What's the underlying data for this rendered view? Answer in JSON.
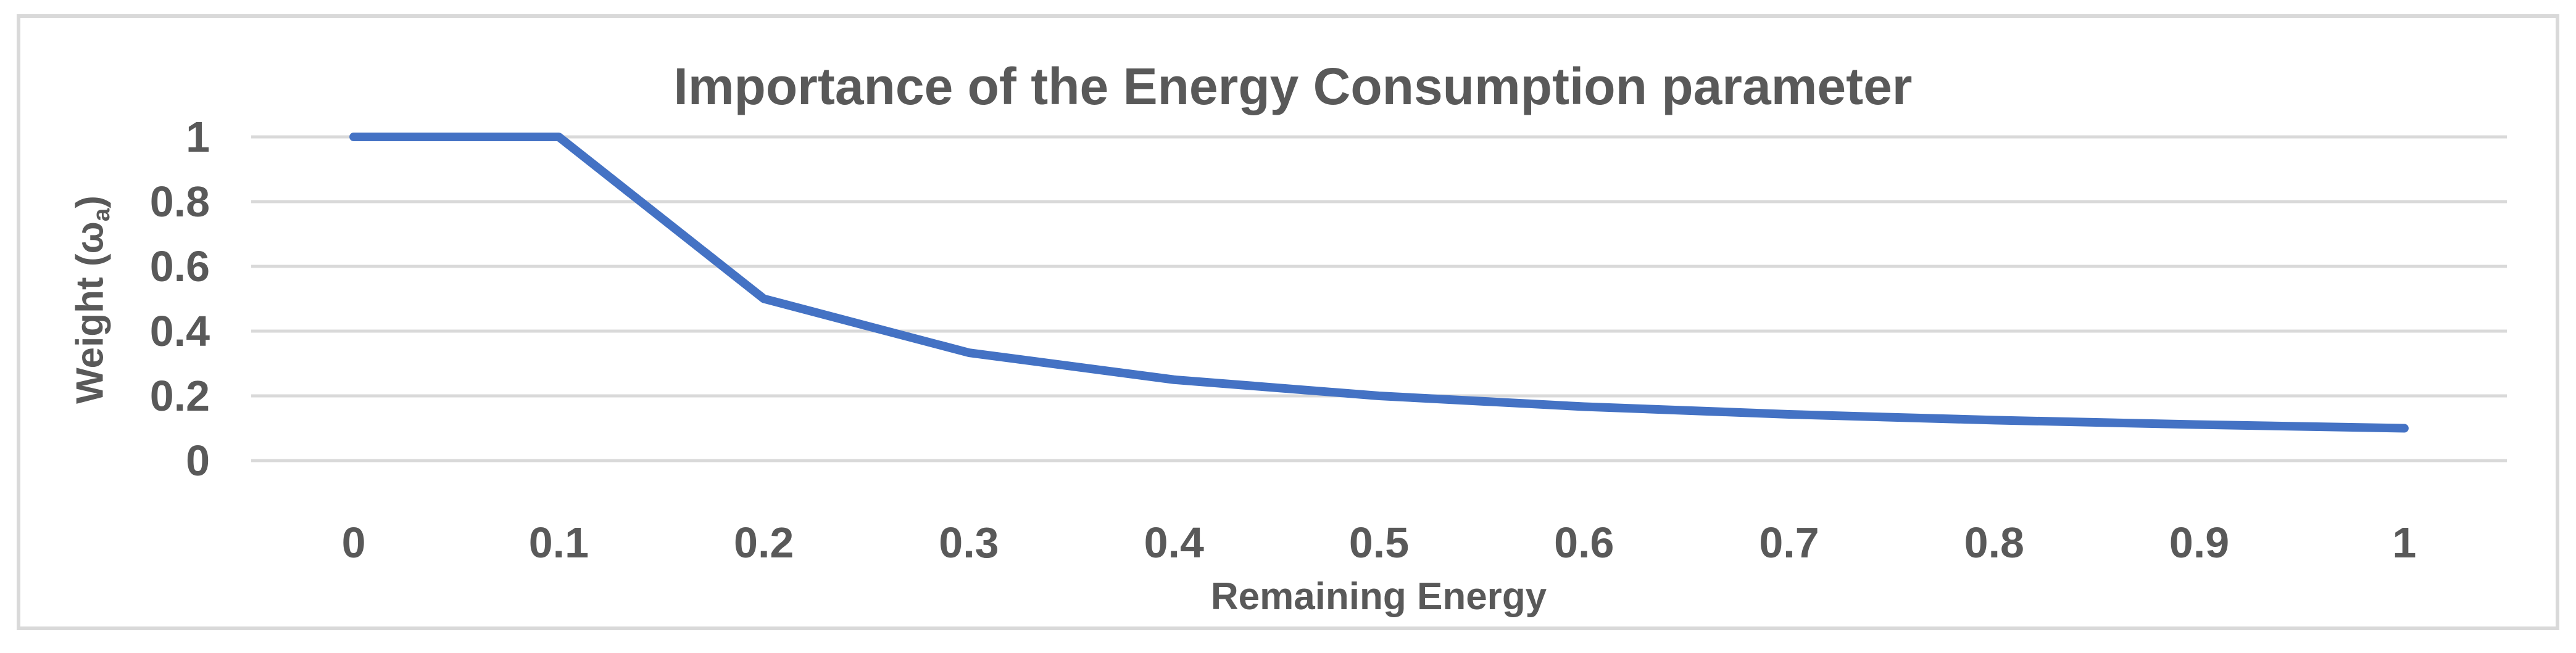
{
  "chart": {
    "title": "Importance of the Energy Consumption parameter",
    "x_axis": {
      "title": "Remaining Energy",
      "tick_labels": [
        "0",
        "0.1",
        "0.2",
        "0.3",
        "0.4",
        "0.5",
        "0.6",
        "0.7",
        "0.8",
        "0.9",
        "1"
      ]
    },
    "y_axis": {
      "title_pre": "Weight (ω",
      "title_sub": "a",
      "title_post": ")",
      "tick_labels": [
        "1",
        "0.8",
        "0.6",
        "0.4",
        "0.2",
        "0"
      ]
    },
    "colors": {
      "line": "#4472C4",
      "gridline": "#D9D9D9",
      "frame_border": "#D9D9D9",
      "text": "#595959",
      "background": "#FFFFFF"
    }
  },
  "chart_data": {
    "type": "line",
    "title": "Importance of the Energy Consumption parameter",
    "xlabel": "Remaining Energy",
    "ylabel": "Weight (ω_a)",
    "x": [
      0,
      0.1,
      0.2,
      0.3,
      0.4,
      0.5,
      0.6,
      0.7,
      0.8,
      0.9,
      1
    ],
    "series": [
      {
        "name": "Weight (ω_a)",
        "values": [
          1,
          1,
          0.5,
          0.3333,
          0.25,
          0.2,
          0.1667,
          0.1429,
          0.125,
          0.1111,
          0.1
        ]
      }
    ],
    "ylim": [
      0,
      1
    ],
    "y_ticks": [
      0,
      0.2,
      0.4,
      0.6,
      0.8,
      1
    ],
    "x_ticks": [
      0,
      0.1,
      0.2,
      0.3,
      0.4,
      0.5,
      0.6,
      0.7,
      0.8,
      0.9,
      1
    ],
    "grid": "horizontal",
    "legend_position": "none",
    "line_color": "#4472C4",
    "line_width": 14,
    "marker": "none"
  }
}
